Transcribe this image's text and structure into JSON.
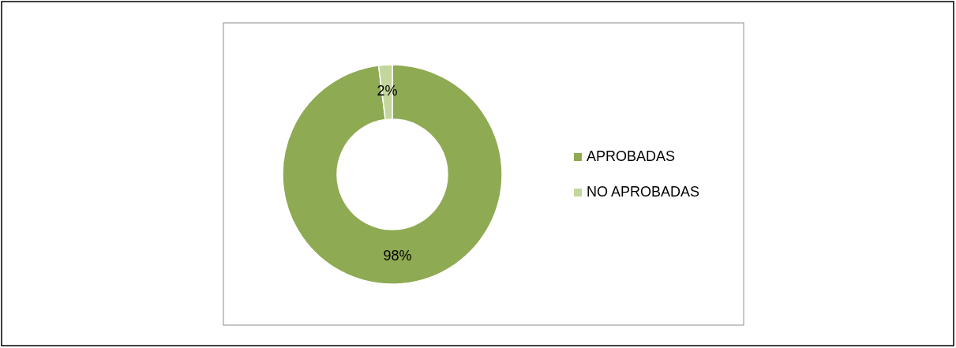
{
  "chart_data": {
    "type": "donut",
    "categories": [
      "APROBADAS",
      "NO APROBADAS"
    ],
    "values": [
      98,
      2
    ],
    "colors": [
      "#8eaa52",
      "#c3d69b"
    ],
    "value_labels": [
      "98%",
      "2%"
    ],
    "legend": "right"
  }
}
